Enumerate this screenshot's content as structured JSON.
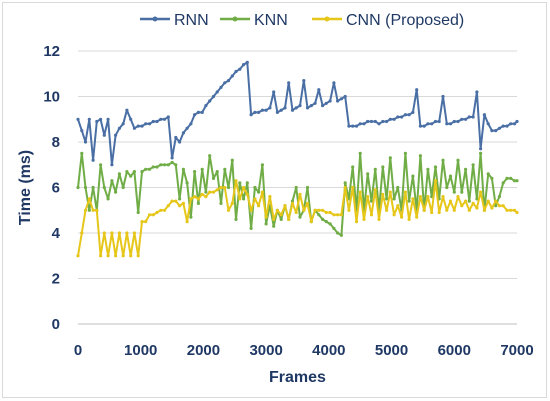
{
  "chart_data": {
    "type": "line",
    "title": "",
    "xlabel": "Frames",
    "ylabel": "Time (ms)",
    "xlim": [
      0,
      7000
    ],
    "ylim": [
      0,
      12
    ],
    "xticks": [
      "0",
      "1000",
      "2000",
      "3000",
      "4000",
      "5000",
      "6000",
      "7000"
    ],
    "yticks": [
      "0",
      "2",
      "4",
      "6",
      "8",
      "10",
      "12"
    ],
    "grid": "horizontal",
    "legend_position": "top",
    "series": [
      {
        "name": "RNN",
        "color": "#4a6fa5",
        "x": [
          0,
          60,
          120,
          180,
          240,
          300,
          360,
          420,
          480,
          540,
          600,
          660,
          720,
          780,
          840,
          900,
          960,
          1020,
          1080,
          1140,
          1200,
          1260,
          1320,
          1380,
          1440,
          1500,
          1560,
          1620,
          1680,
          1740,
          1800,
          1860,
          1920,
          1980,
          2040,
          2100,
          2160,
          2220,
          2280,
          2340,
          2400,
          2460,
          2520,
          2580,
          2640,
          2700,
          2760,
          2820,
          2880,
          2940,
          3000,
          3060,
          3120,
          3180,
          3240,
          3300,
          3360,
          3420,
          3480,
          3540,
          3600,
          3660,
          3720,
          3780,
          3840,
          3900,
          3960,
          4020,
          4080,
          4140,
          4200,
          4260,
          4320,
          4380,
          4440,
          4500,
          4560,
          4620,
          4680,
          4740,
          4800,
          4860,
          4920,
          4980,
          5040,
          5100,
          5160,
          5220,
          5280,
          5340,
          5400,
          5460,
          5520,
          5580,
          5640,
          5700,
          5760,
          5820,
          5880,
          5940,
          6000,
          6060,
          6120,
          6180,
          6240,
          6300,
          6360,
          6420,
          6480,
          6540,
          6600,
          6660,
          6720,
          6780,
          6840,
          6900,
          6960,
          7000
        ],
        "y": [
          9.0,
          8.5,
          8.0,
          9.0,
          7.2,
          8.9,
          9.0,
          8.3,
          9.0,
          7.0,
          8.3,
          8.6,
          8.8,
          9.4,
          9.0,
          8.6,
          8.7,
          8.7,
          8.8,
          8.8,
          8.9,
          8.9,
          9.0,
          9.0,
          9.1,
          7.3,
          8.2,
          8.0,
          8.4,
          8.6,
          8.8,
          9.2,
          9.3,
          9.3,
          9.6,
          9.8,
          10.0,
          10.2,
          10.4,
          10.6,
          10.7,
          10.9,
          11.1,
          11.2,
          11.4,
          11.5,
          9.2,
          9.3,
          9.3,
          9.4,
          9.4,
          9.5,
          10.2,
          9.3,
          9.4,
          9.5,
          10.6,
          9.4,
          9.5,
          9.6,
          10.7,
          9.5,
          9.6,
          9.7,
          10.3,
          9.6,
          9.7,
          9.8,
          10.6,
          9.8,
          9.9,
          10.0,
          8.7,
          8.7,
          8.7,
          8.8,
          8.8,
          8.9,
          8.9,
          8.9,
          8.8,
          8.9,
          8.9,
          9.0,
          9.0,
          9.1,
          9.1,
          9.2,
          9.2,
          9.3,
          10.3,
          8.7,
          8.7,
          8.8,
          8.8,
          8.9,
          8.9,
          10.0,
          8.8,
          8.8,
          8.9,
          8.9,
          9.0,
          9.0,
          9.1,
          9.1,
          10.2,
          7.7,
          9.2,
          8.8,
          8.5,
          8.5,
          8.6,
          8.7,
          8.7,
          8.8,
          8.8,
          8.9
        ]
      },
      {
        "name": "KNN",
        "color": "#70ad47",
        "x": [
          0,
          60,
          120,
          180,
          240,
          300,
          360,
          420,
          480,
          540,
          600,
          660,
          720,
          780,
          840,
          900,
          960,
          1020,
          1080,
          1140,
          1200,
          1260,
          1320,
          1380,
          1440,
          1500,
          1560,
          1620,
          1680,
          1740,
          1800,
          1860,
          1920,
          1980,
          2040,
          2100,
          2160,
          2220,
          2280,
          2340,
          2400,
          2460,
          2520,
          2580,
          2640,
          2700,
          2760,
          2820,
          2880,
          2940,
          3000,
          3060,
          3120,
          3180,
          3240,
          3300,
          3360,
          3420,
          3480,
          3540,
          3600,
          3660,
          3720,
          3780,
          3840,
          3900,
          3960,
          4020,
          4080,
          4140,
          4200,
          4260,
          4320,
          4380,
          4440,
          4500,
          4560,
          4620,
          4680,
          4740,
          4800,
          4860,
          4920,
          4980,
          5040,
          5100,
          5160,
          5220,
          5280,
          5340,
          5400,
          5460,
          5520,
          5580,
          5640,
          5700,
          5760,
          5820,
          5880,
          5940,
          6000,
          6060,
          6120,
          6180,
          6240,
          6300,
          6360,
          6420,
          6480,
          6540,
          6600,
          6660,
          6720,
          6780,
          6840,
          6900,
          6960,
          7000
        ],
        "y": [
          6.0,
          7.5,
          6.0,
          5.0,
          6.0,
          5.0,
          7.0,
          6.0,
          5.5,
          6.3,
          5.8,
          6.6,
          6.0,
          6.7,
          6.5,
          6.7,
          4.9,
          6.7,
          6.8,
          6.8,
          6.9,
          6.9,
          7.0,
          7.0,
          7.0,
          7.1,
          7.0,
          5.5,
          6.8,
          6.2,
          4.7,
          6.7,
          5.3,
          6.8,
          5.8,
          7.4,
          6.4,
          6.7,
          5.3,
          6.8,
          6.0,
          7.2,
          4.6,
          6.2,
          5.5,
          6.2,
          4.2,
          6.0,
          5.8,
          7.0,
          4.4,
          5.2,
          4.3,
          5.0,
          4.6,
          5.2,
          4.6,
          5.4,
          6.0,
          4.7,
          5.0,
          6.0,
          4.5,
          5.0,
          4.8,
          4.6,
          4.5,
          4.4,
          4.2,
          4.0,
          3.9,
          6.2,
          5.5,
          6.9,
          5.0,
          7.5,
          5.0,
          6.6,
          5.4,
          6.8,
          5.0,
          6.9,
          5.5,
          7.3,
          5.5,
          6.0,
          5.0,
          7.5,
          5.4,
          6.5,
          5.0,
          7.4,
          5.0,
          6.8,
          5.6,
          6.9,
          5.5,
          7.2,
          6.0,
          6.5,
          5.8,
          7.2,
          5.8,
          6.8,
          5.4,
          7.0,
          5.5,
          7.5,
          5.0,
          6.6,
          6.4,
          5.2,
          5.6,
          6.2,
          6.4,
          6.4,
          6.3,
          6.3
        ]
      },
      {
        "name": "CNN (Proposed)",
        "color": "#e6c619",
        "x": [
          0,
          60,
          120,
          180,
          240,
          300,
          360,
          420,
          480,
          540,
          600,
          660,
          720,
          780,
          840,
          900,
          960,
          1020,
          1080,
          1140,
          1200,
          1260,
          1320,
          1380,
          1440,
          1500,
          1560,
          1620,
          1680,
          1740,
          1800,
          1860,
          1920,
          1980,
          2040,
          2100,
          2160,
          2220,
          2280,
          2340,
          2400,
          2460,
          2520,
          2580,
          2640,
          2700,
          2760,
          2820,
          2880,
          2940,
          3000,
          3060,
          3120,
          3180,
          3240,
          3300,
          3360,
          3420,
          3480,
          3540,
          3600,
          3660,
          3720,
          3780,
          3840,
          3900,
          3960,
          4020,
          4080,
          4140,
          4200,
          4260,
          4320,
          4380,
          4440,
          4500,
          4560,
          4620,
          4680,
          4740,
          4800,
          4860,
          4920,
          4980,
          5040,
          5100,
          5160,
          5220,
          5280,
          5340,
          5400,
          5460,
          5520,
          5580,
          5640,
          5700,
          5760,
          5820,
          5880,
          5940,
          6000,
          6060,
          6120,
          6180,
          6240,
          6300,
          6360,
          6420,
          6480,
          6540,
          6600,
          6660,
          6720,
          6780,
          6840,
          6900,
          6960,
          7000
        ],
        "y": [
          3.0,
          4.0,
          5.0,
          5.5,
          5.0,
          5.0,
          3.0,
          4.0,
          3.0,
          4.0,
          3.0,
          4.0,
          3.0,
          4.0,
          3.0,
          4.0,
          3.0,
          4.5,
          4.5,
          4.8,
          4.8,
          4.9,
          5.0,
          5.0,
          5.2,
          5.4,
          5.4,
          5.2,
          5.3,
          4.5,
          5.5,
          5.6,
          5.5,
          5.7,
          5.6,
          5.8,
          5.8,
          5.9,
          6.0,
          6.0,
          5.0,
          5.3,
          6.3,
          5.5,
          6.0,
          5.7,
          5.0,
          5.5,
          5.2,
          5.8,
          4.7,
          5.6,
          4.6,
          5.0,
          4.8,
          5.2,
          4.6,
          5.3,
          4.9,
          5.7,
          5.0,
          5.3,
          4.5,
          5.0,
          5.0,
          5.0,
          4.9,
          4.9,
          4.8,
          4.8,
          4.8,
          6.0,
          5.0,
          6.0,
          4.5,
          5.8,
          4.6,
          5.6,
          4.8,
          5.9,
          4.6,
          5.7,
          5.0,
          5.8,
          4.8,
          5.2,
          4.7,
          5.8,
          4.6,
          5.5,
          4.7,
          5.6,
          5.0,
          5.6,
          4.9,
          6.3,
          4.9,
          5.6,
          5.0,
          5.4,
          5.0,
          5.6,
          5.2,
          5.4,
          5.0,
          5.3,
          5.1,
          5.8,
          5.0,
          5.4,
          5.1,
          5.4,
          5.2,
          5.2,
          5.0,
          5.0,
          5.0,
          4.9
        ]
      }
    ]
  }
}
